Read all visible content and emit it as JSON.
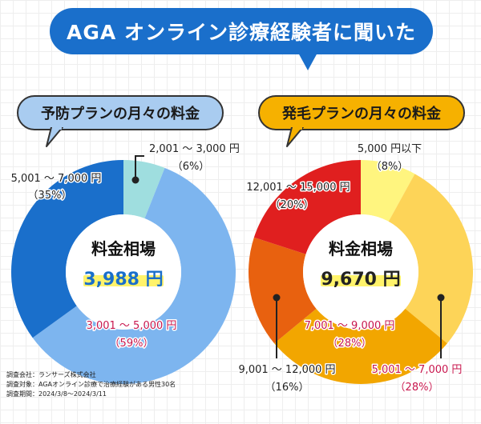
{
  "header": {
    "title": "AGA オンライン診療経験者に聞いた"
  },
  "chart_data": [
    {
      "type": "pie",
      "title": "予防プランの月々の料金",
      "center_label": "料金相場",
      "center_value": "3,988 円",
      "colors": {
        "accent": "#1a6fcb"
      },
      "slices": [
        {
          "label": "2,001 ～ 3,000 円",
          "percent_label": "（6%）",
          "value": 6,
          "color": "#9fdedf"
        },
        {
          "label": "3,001 ～ 5,000 円",
          "percent_label": "（59%）",
          "value": 59,
          "color": "#7db5ef"
        },
        {
          "label": "5,001 ～ 7,000 円",
          "percent_label": "（35%）",
          "value": 35,
          "color": "#1a6fcb"
        }
      ]
    },
    {
      "type": "pie",
      "title": "発毛プランの月々の料金",
      "center_label": "料金相場",
      "center_value": "9,670 円",
      "colors": {
        "accent": "#f6b100"
      },
      "slices": [
        {
          "label": "5,000 円以下",
          "percent_label": "（8%）",
          "value": 8,
          "color": "#fff57f"
        },
        {
          "label": "5,001 ～ 7,000 円",
          "percent_label": "（28%）",
          "value": 28,
          "color": "#fdd458"
        },
        {
          "label": "7,001 ～ 9,000 円",
          "percent_label": "（28%）",
          "value": 28,
          "color": "#f2a600"
        },
        {
          "label": "9,001 ～ 12,000 円",
          "percent_label": "（16%）",
          "value": 16,
          "color": "#e8610f"
        },
        {
          "label": "12,001 ～ 15,000 円",
          "percent_label": "（20%）",
          "value": 20,
          "color": "#e01f1f"
        }
      ]
    }
  ],
  "footer": {
    "line1": "調査会社：ランサーズ株式会社",
    "line2": "調査対象：AGAオンライン診療で治療経験がある男性30名",
    "line3": "調査期間：2024/3/8～2024/3/11"
  }
}
